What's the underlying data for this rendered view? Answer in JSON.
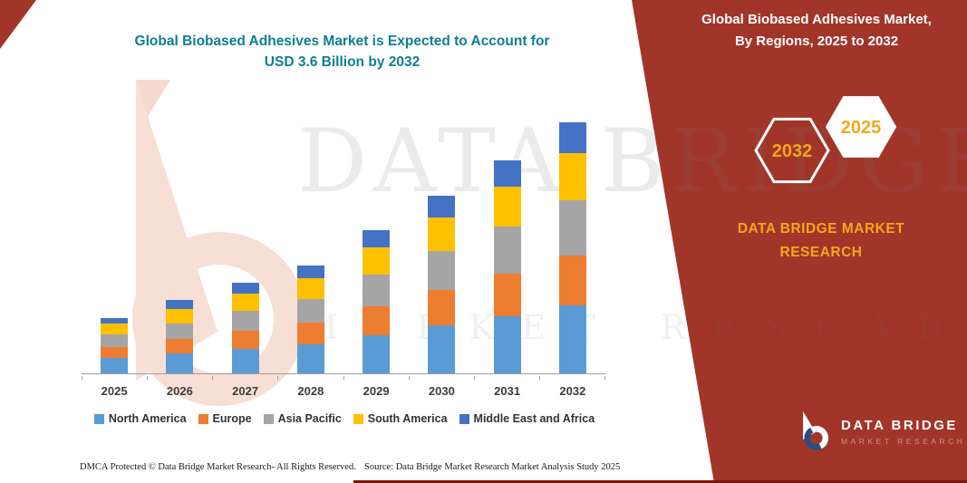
{
  "title": {
    "line1": "Global Biobased Adhesives Market is Expected to Account for",
    "line2": "USD 3.6 Billion by 2032",
    "color": "#0d7f92"
  },
  "side_panel": {
    "bg_color": "#a23529",
    "accent_color": "#f2a71c",
    "heading_line1": "Global Biobased Adhesives Market,",
    "heading_line2": "By Regions, 2025 to 2032",
    "hexagons": [
      {
        "label": "2032"
      },
      {
        "label": "2025"
      }
    ],
    "brand_line1": "DATA BRIDGE MARKET",
    "brand_line2": "RESEARCH",
    "logo_title": "DATA BRIDGE",
    "logo_subtitle": "MARKET RESEARCH"
  },
  "watermark": {
    "line1": "DATA BRIDGE",
    "line2": "MARKET RESEARCH"
  },
  "footer": {
    "dmca": "DMCA Protected © Data Bridge Market Research-  All Rights Reserved.",
    "source": "Source: Data Bridge Market Research  Market Analysis Study 2025"
  },
  "chart_data": {
    "type": "bar",
    "stacked": true,
    "title": "Global Biobased Adhesives Market, By Regions, 2025 to 2032",
    "units": "USD Billion",
    "ylim": [
      0,
      3.6
    ],
    "legend_position": "bottom",
    "grid": false,
    "categories": [
      "2025",
      "2026",
      "2027",
      "2028",
      "2029",
      "2030",
      "2031",
      "2032"
    ],
    "series": [
      {
        "name": "North America",
        "color": "#5b9bd5",
        "values": [
          0.22,
          0.28,
          0.35,
          0.42,
          0.55,
          0.69,
          0.82,
          0.97
        ]
      },
      {
        "name": "Europe",
        "color": "#ed7d31",
        "values": [
          0.16,
          0.21,
          0.26,
          0.31,
          0.41,
          0.51,
          0.61,
          0.72
        ]
      },
      {
        "name": "Asia Pacific",
        "color": "#a5a5a5",
        "values": [
          0.18,
          0.23,
          0.29,
          0.34,
          0.45,
          0.56,
          0.67,
          0.79
        ]
      },
      {
        "name": "South America",
        "color": "#ffc000",
        "values": [
          0.15,
          0.2,
          0.25,
          0.29,
          0.39,
          0.48,
          0.58,
          0.68
        ]
      },
      {
        "name": "Middle East and Africa",
        "color": "#4472c4",
        "values": [
          0.09,
          0.13,
          0.15,
          0.19,
          0.25,
          0.31,
          0.37,
          0.44
        ]
      }
    ],
    "totals": [
      0.8,
      1.05,
      1.3,
      1.55,
      2.05,
      2.55,
      3.05,
      3.6
    ]
  }
}
